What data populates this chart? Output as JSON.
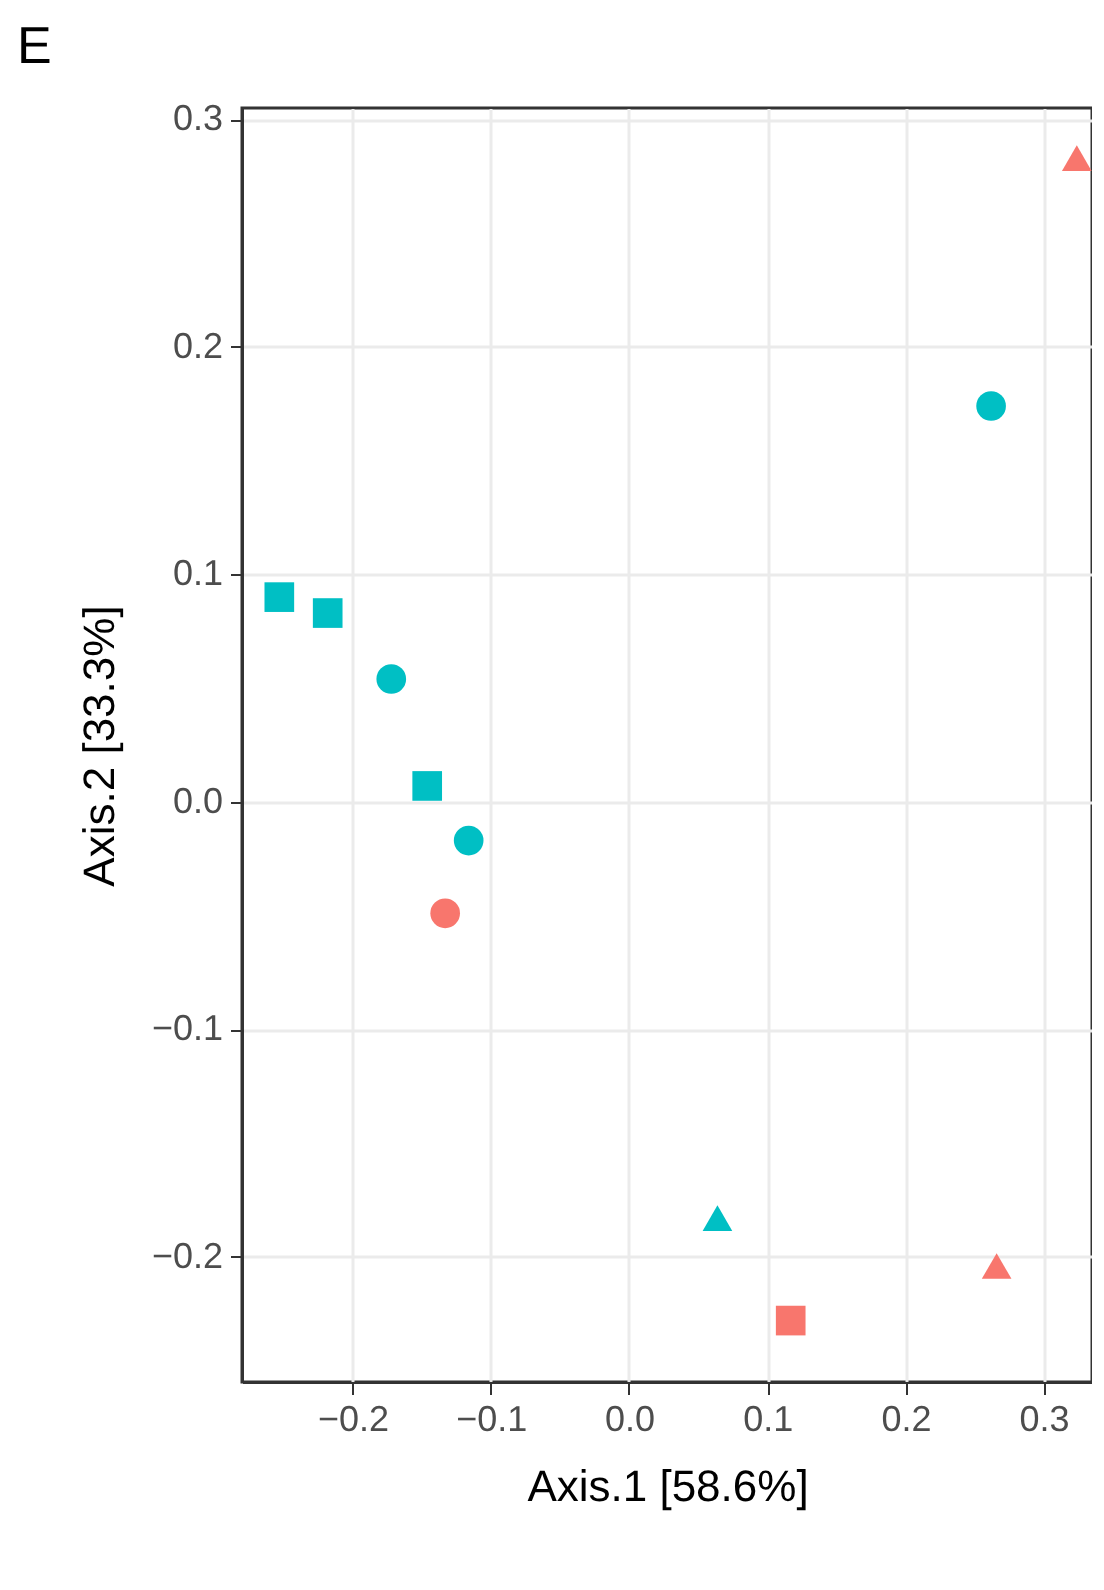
{
  "chart_data": {
    "type": "scatter",
    "title": "E",
    "xlabel": "Axis.1   [58.6%]",
    "ylabel": "Axis.2   [33.3%]",
    "xlim": [
      -0.28,
      0.335
    ],
    "ylim": [
      -0.255,
      0.305
    ],
    "xticks": [
      {
        "value": -0.2,
        "label": "−0.2"
      },
      {
        "value": -0.1,
        "label": "−0.1"
      },
      {
        "value": 0,
        "label": "0.0"
      },
      {
        "value": 0.1,
        "label": "0.1"
      },
      {
        "value": 0.2,
        "label": "0.2"
      },
      {
        "value": 0.3,
        "label": "0.3"
      }
    ],
    "yticks": [
      {
        "value": -0.2,
        "label": "−0.2"
      },
      {
        "value": -0.1,
        "label": "−0.1"
      },
      {
        "value": 0,
        "label": "0.0"
      },
      {
        "value": 0.1,
        "label": "0.1"
      },
      {
        "value": 0.2,
        "label": "0.2"
      },
      {
        "value": 0.3,
        "label": "0.3"
      }
    ],
    "grid": true,
    "series": [
      {
        "color": "#00bfc4",
        "marker": "circle",
        "x": [
          -0.172,
          -0.116,
          0.262
        ],
        "values": [
          0.054,
          -0.017,
          0.174
        ]
      },
      {
        "color": "#00bfc4",
        "marker": "square",
        "x": [
          -0.253,
          -0.218,
          -0.146
        ],
        "values": [
          0.09,
          0.083,
          0.007
        ]
      },
      {
        "color": "#00bfc4",
        "marker": "triangle",
        "x": [
          0.064
        ],
        "values": [
          -0.183
        ]
      },
      {
        "color": "#f8766d",
        "marker": "circle",
        "x": [
          -0.133
        ],
        "values": [
          -0.049
        ]
      },
      {
        "color": "#f8766d",
        "marker": "square",
        "x": [
          0.117
        ],
        "values": [
          -0.228
        ]
      },
      {
        "color": "#f8766d",
        "marker": "triangle",
        "x": [
          0.266,
          0.324
        ],
        "values": [
          -0.204,
          0.283
        ]
      }
    ]
  }
}
